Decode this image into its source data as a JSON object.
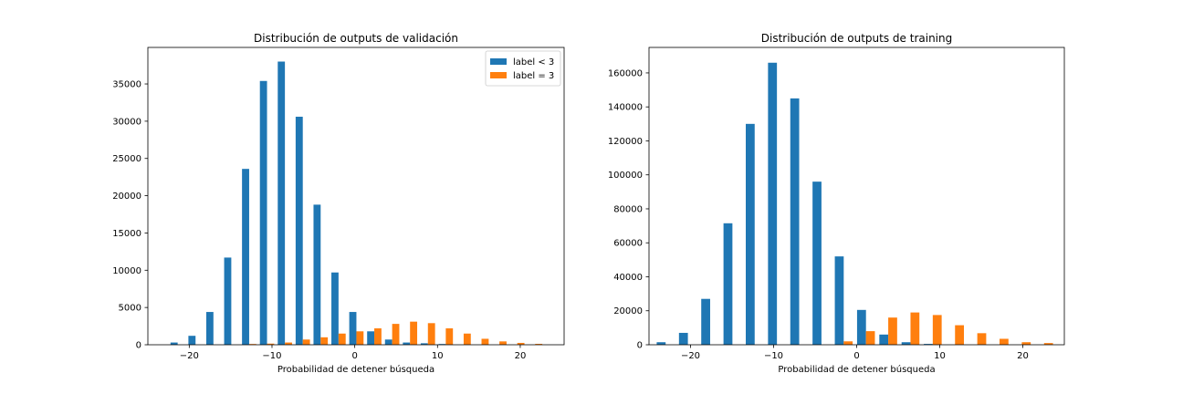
{
  "chart_data": [
    {
      "type": "bar",
      "title": "Distribución de outputs de validación",
      "xlabel": "Probabilidad de detener búsqueda",
      "ylabel": "",
      "xlim": [
        -25,
        25.3
      ],
      "ylim": [
        0,
        39900
      ],
      "xticks": [
        -20,
        -10,
        0,
        10,
        20
      ],
      "yticks": [
        0,
        5000,
        10000,
        15000,
        20000,
        25000,
        30000,
        35000
      ],
      "legend": "top-right",
      "bin_width": 2.16,
      "x": [
        -21.4,
        -19.24,
        -17.08,
        -14.92,
        -12.76,
        -10.6,
        -8.44,
        -6.28,
        -4.12,
        -1.96,
        0.2,
        2.36,
        4.52,
        6.68,
        8.84,
        11.0,
        13.16,
        15.32,
        17.48,
        19.64,
        21.8
      ],
      "series": [
        {
          "name": "label < 3",
          "color": "#1f77b4",
          "values": [
            300,
            1200,
            4400,
            11700,
            23600,
            35400,
            38000,
            30600,
            18800,
            9700,
            4400,
            1800,
            700,
            300,
            200,
            100,
            0,
            0,
            0,
            0,
            0
          ]
        },
        {
          "name": "label = 3",
          "color": "#ff7f0e",
          "values": [
            0,
            0,
            0,
            0,
            100,
            150,
            300,
            700,
            1000,
            1500,
            1800,
            2200,
            2800,
            3100,
            2900,
            2200,
            1500,
            800,
            450,
            250,
            120
          ]
        }
      ]
    },
    {
      "type": "bar",
      "title": "Distribución de outputs de training",
      "xlabel": "Probabilidad de detener búsqueda",
      "ylabel": "",
      "xlim": [
        -25,
        25
      ],
      "ylim": [
        0,
        175000
      ],
      "xticks": [
        -20,
        -10,
        0,
        10,
        20
      ],
      "yticks": [
        0,
        20000,
        40000,
        60000,
        80000,
        100000,
        120000,
        140000,
        160000
      ],
      "legend": "none",
      "bin_width": 2.68,
      "x": [
        -23.0,
        -20.32,
        -17.64,
        -14.96,
        -12.28,
        -9.6,
        -6.92,
        -4.24,
        -1.56,
        1.12,
        3.8,
        6.48,
        9.16,
        11.84,
        14.52,
        17.2,
        19.88,
        22.56
      ],
      "series": [
        {
          "name": "label < 3",
          "color": "#1f77b4",
          "values": [
            1500,
            7000,
            27000,
            71500,
            130000,
            166000,
            145000,
            96000,
            52000,
            20500,
            6000,
            1500,
            500,
            0,
            0,
            0,
            0,
            0
          ]
        },
        {
          "name": "label = 3",
          "color": "#ff7f0e",
          "values": [
            0,
            0,
            0,
            0,
            0,
            0,
            0,
            0,
            2000,
            8000,
            16000,
            19000,
            17500,
            11500,
            6800,
            3500,
            1500,
            1000
          ]
        }
      ]
    }
  ]
}
